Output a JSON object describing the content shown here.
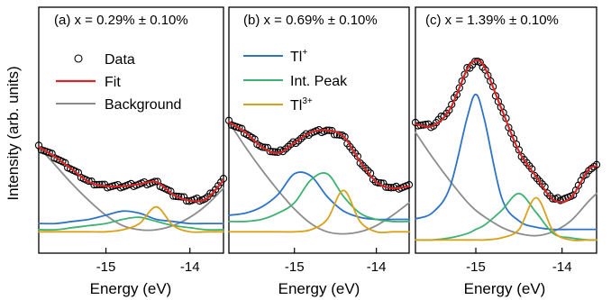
{
  "colors": {
    "data": "#000000",
    "fit": "#d62728",
    "background": "#8c8c8c",
    "tl_plus": "#2f73c9",
    "int_peak": "#3cb371",
    "tl3_plus": "#d9a21b"
  },
  "chart_data": [
    {
      "type": "line",
      "title": "(a) x = 0.29% ± 0.10%",
      "xlabel": "Energy (eV)",
      "ylabel": "Intensity (arb. units)",
      "xlim": [
        -15.8,
        -13.6
      ],
      "ylim": [
        0,
        1
      ],
      "x_ticks": [
        -15,
        -14
      ],
      "x_tick_labels": [
        "-15",
        "-14"
      ],
      "legend": {
        "placement": "right",
        "entries": [
          {
            "label": "Data",
            "marker": "circle"
          },
          {
            "label": "Fit",
            "line": "fit"
          },
          {
            "label": "Background",
            "line": "background"
          }
        ]
      },
      "x": [
        -15.8,
        -15.6,
        -15.4,
        -15.2,
        -15.0,
        -14.8,
        -14.6,
        -14.4,
        -14.2,
        -14.0,
        -13.8,
        -13.6
      ],
      "series": [
        {
          "key": "data",
          "values": [
            0.5,
            0.45,
            0.39,
            0.33,
            0.31,
            0.31,
            0.32,
            0.33,
            0.27,
            0.24,
            0.25,
            0.34
          ]
        },
        {
          "key": "fit",
          "values": [
            0.5,
            0.45,
            0.39,
            0.33,
            0.31,
            0.31,
            0.32,
            0.33,
            0.27,
            0.24,
            0.25,
            0.34
          ]
        },
        {
          "key": "background",
          "values": [
            0.5,
            0.41,
            0.32,
            0.24,
            0.17,
            0.12,
            0.1,
            0.1,
            0.12,
            0.16,
            0.22,
            0.3
          ]
        },
        {
          "key": "tl_plus",
          "values": [
            0.13,
            0.13,
            0.14,
            0.15,
            0.17,
            0.19,
            0.18,
            0.15,
            0.14,
            0.13,
            0.13,
            0.13
          ]
        },
        {
          "key": "int_peak",
          "values": [
            0.1,
            0.1,
            0.11,
            0.12,
            0.13,
            0.15,
            0.16,
            0.14,
            0.12,
            0.11,
            0.1,
            0.1
          ]
        },
        {
          "key": "tl3_plus",
          "values": [
            0.09,
            0.09,
            0.09,
            0.09,
            0.09,
            0.1,
            0.13,
            0.21,
            0.12,
            0.09,
            0.09,
            0.09
          ]
        }
      ]
    },
    {
      "type": "line",
      "title": "(b) x = 0.69% ± 0.10%",
      "xlabel": "Energy (eV)",
      "xlim": [
        -15.8,
        -13.6
      ],
      "ylim": [
        0,
        1
      ],
      "x_ticks": [
        -15,
        -14
      ],
      "x_tick_labels": [
        "-15",
        "-14"
      ],
      "legend": {
        "placement": "top-left",
        "entries": [
          {
            "label": "Tl",
            "superscript": "+",
            "line": "tl_plus"
          },
          {
            "label": "Int. Peak",
            "line": "int_peak"
          },
          {
            "label": "Tl",
            "superscript": "3+",
            "line": "tl3_plus"
          }
        ]
      },
      "x": [
        -15.8,
        -15.6,
        -15.4,
        -15.2,
        -15.0,
        -14.8,
        -14.6,
        -14.4,
        -14.2,
        -14.0,
        -13.8,
        -13.6
      ],
      "series": [
        {
          "key": "data",
          "values": [
            0.62,
            0.57,
            0.5,
            0.47,
            0.52,
            0.57,
            0.58,
            0.55,
            0.43,
            0.33,
            0.3,
            0.31
          ]
        },
        {
          "key": "fit",
          "values": [
            0.62,
            0.57,
            0.5,
            0.47,
            0.52,
            0.57,
            0.58,
            0.55,
            0.43,
            0.33,
            0.3,
            0.31
          ]
        },
        {
          "key": "background",
          "values": [
            0.62,
            0.5,
            0.39,
            0.29,
            0.2,
            0.13,
            0.09,
            0.08,
            0.09,
            0.12,
            0.17,
            0.23
          ]
        },
        {
          "key": "tl_plus",
          "values": [
            0.17,
            0.18,
            0.21,
            0.27,
            0.37,
            0.36,
            0.26,
            0.19,
            0.16,
            0.15,
            0.15,
            0.15
          ]
        },
        {
          "key": "int_peak",
          "values": [
            0.14,
            0.14,
            0.15,
            0.18,
            0.23,
            0.34,
            0.37,
            0.26,
            0.18,
            0.15,
            0.14,
            0.14
          ]
        },
        {
          "key": "tl3_plus",
          "values": [
            0.09,
            0.09,
            0.09,
            0.09,
            0.09,
            0.1,
            0.15,
            0.29,
            0.14,
            0.09,
            0.09,
            0.09
          ]
        }
      ]
    },
    {
      "type": "line",
      "title": "(c) x = 1.39% ± 0.10%",
      "xlabel": "Energy (eV)",
      "xlim": [
        -15.7,
        -13.6
      ],
      "ylim": [
        0,
        1
      ],
      "x_ticks": [
        -15,
        -14
      ],
      "x_tick_labels": [
        "-15",
        "-14"
      ],
      "x": [
        -15.7,
        -15.5,
        -15.3,
        -15.1,
        -15.0,
        -14.9,
        -14.7,
        -14.5,
        -14.3,
        -14.1,
        -13.9,
        -13.7,
        -13.6
      ],
      "series": [
        {
          "key": "data",
          "values": [
            0.6,
            0.59,
            0.67,
            0.86,
            0.9,
            0.87,
            0.67,
            0.47,
            0.35,
            0.24,
            0.25,
            0.38,
            0.4
          ]
        },
        {
          "key": "fit",
          "values": [
            0.6,
            0.59,
            0.67,
            0.86,
            0.9,
            0.87,
            0.67,
            0.47,
            0.35,
            0.24,
            0.25,
            0.38,
            0.4
          ]
        },
        {
          "key": "background",
          "values": [
            0.56,
            0.44,
            0.33,
            0.23,
            0.19,
            0.16,
            0.11,
            0.08,
            0.07,
            0.09,
            0.14,
            0.23,
            0.27
          ]
        },
        {
          "key": "tl_plus",
          "values": [
            0.15,
            0.18,
            0.3,
            0.63,
            0.74,
            0.62,
            0.25,
            0.14,
            0.11,
            0.1,
            0.1,
            0.1,
            0.1
          ]
        },
        {
          "key": "int_peak",
          "values": [
            0.05,
            0.05,
            0.06,
            0.08,
            0.1,
            0.12,
            0.19,
            0.27,
            0.18,
            0.08,
            0.06,
            0.05,
            0.05
          ]
        },
        {
          "key": "tl3_plus",
          "values": [
            0.05,
            0.05,
            0.05,
            0.05,
            0.05,
            0.05,
            0.06,
            0.1,
            0.25,
            0.09,
            0.05,
            0.05,
            0.05
          ]
        }
      ]
    }
  ]
}
